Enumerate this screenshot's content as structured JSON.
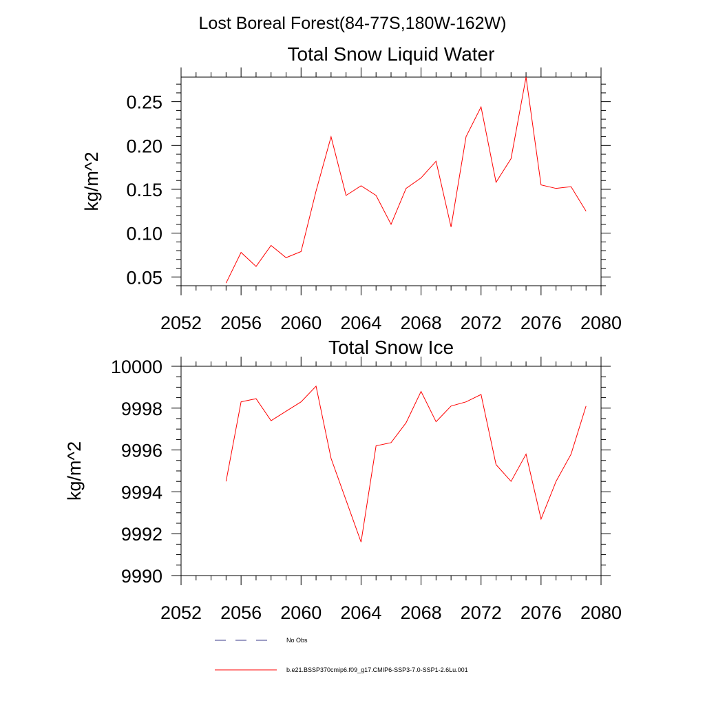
{
  "figure_title": "Lost Boreal Forest(84-77S,180W-162W)",
  "legend": {
    "entries": [
      {
        "label": "No Obs",
        "style": "dashed",
        "color": "#3a3a8a"
      },
      {
        "label": "b.e21.BSSP370cmip6.f09_g17.CMIP6-SSP3-7.0-SSP1-2.6Lu.001",
        "style": "solid",
        "color": "#ff0000"
      }
    ]
  },
  "chart_data": [
    {
      "type": "line",
      "title": "Total Snow Liquid Water",
      "xlabel": "",
      "ylabel": "kg/m^2",
      "xlim": [
        2052,
        2080
      ],
      "ylim": [
        0.04,
        0.278
      ],
      "x_ticks": [
        2052,
        2056,
        2060,
        2064,
        2068,
        2072,
        2076,
        2080
      ],
      "x_tick_labels": [
        "2052",
        "2056",
        "2060",
        "2064",
        "2068",
        "2072",
        "2076",
        "2080"
      ],
      "y_ticks": [
        0.05,
        0.1,
        0.15,
        0.2,
        0.25
      ],
      "y_tick_labels": [
        "0.05",
        "0.10",
        "0.15",
        "0.20",
        "0.25"
      ],
      "grid": false,
      "series": [
        {
          "name": "b.e21.BSSP370cmip6.f09_g17.CMIP6-SSP3-7.0-SSP1-2.6Lu.001",
          "color": "#ff0000",
          "x": [
            2055,
            2056,
            2057,
            2058,
            2059,
            2060,
            2061,
            2062,
            2063,
            2064,
            2065,
            2066,
            2067,
            2068,
            2069,
            2070,
            2071,
            2072,
            2073,
            2074,
            2075,
            2076,
            2077,
            2078,
            2079
          ],
          "y": [
            0.043,
            0.078,
            0.062,
            0.086,
            0.072,
            0.079,
            0.148,
            0.21,
            0.143,
            0.154,
            0.143,
            0.11,
            0.151,
            0.163,
            0.182,
            0.107,
            0.21,
            0.244,
            0.158,
            0.185,
            0.278,
            0.155,
            0.151,
            0.153,
            0.125
          ]
        }
      ]
    },
    {
      "type": "line",
      "title": "Total Snow Ice",
      "xlabel": "",
      "ylabel": "kg/m^2",
      "xlim": [
        2052,
        2080
      ],
      "ylim": [
        9990,
        10000
      ],
      "x_ticks": [
        2052,
        2056,
        2060,
        2064,
        2068,
        2072,
        2076,
        2080
      ],
      "x_tick_labels": [
        "2052",
        "2056",
        "2060",
        "2064",
        "2068",
        "2072",
        "2076",
        "2080"
      ],
      "y_ticks": [
        9990,
        9992,
        9994,
        9996,
        9998,
        10000
      ],
      "y_tick_labels": [
        "9990",
        "9992",
        "9994",
        "9996",
        "9998",
        "10000"
      ],
      "grid": false,
      "series": [
        {
          "name": "b.e21.BSSP370cmip6.f09_g17.CMIP6-SSP3-7.0-SSP1-2.6Lu.001",
          "color": "#ff0000",
          "x": [
            2055,
            2056,
            2057,
            2058,
            2059,
            2060,
            2061,
            2062,
            2063,
            2064,
            2065,
            2066,
            2067,
            2068,
            2069,
            2070,
            2071,
            2072,
            2073,
            2074,
            2075,
            2076,
            2077,
            2078,
            2079
          ],
          "y": [
            9994.5,
            9998.3,
            9998.45,
            9997.4,
            9997.85,
            9998.3,
            9999.05,
            9995.6,
            9993.6,
            9991.6,
            9996.2,
            9996.35,
            9997.3,
            9998.8,
            9997.35,
            9998.1,
            9998.3,
            9998.65,
            9995.3,
            9994.5,
            9995.8,
            9992.7,
            9994.5,
            9995.8,
            9998.1
          ]
        }
      ]
    }
  ]
}
